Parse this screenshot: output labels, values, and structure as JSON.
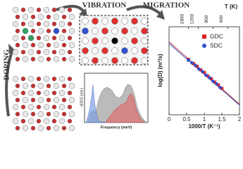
{
  "labels": {
    "doping": "DOPING",
    "vibration": "VIBRATION",
    "migration": "MIGRATION",
    "vdos_ylabel": "vDOS (arb.)",
    "vdos_xlabel": "Frequency (meV)"
  },
  "chart_data": {
    "type": "scatter",
    "ylabel": "log(D) (m²/s)",
    "xlabel": "1000/T (K⁻¹)",
    "x2label": "T (K)",
    "xlim": [
      0,
      2
    ],
    "xticks": [
      0,
      0.5,
      1,
      1.5,
      2
    ],
    "x2ticks": [
      {
        "value": 0.556,
        "label": "1800"
      },
      {
        "value": 0.833,
        "label": "1200"
      },
      {
        "value": 1.25,
        "label": "800"
      },
      {
        "value": 1.667,
        "label": "600"
      }
    ],
    "ylim": [
      0,
      1
    ],
    "legend": "upper-right",
    "series": [
      {
        "name": "GDC",
        "color": "#e02020",
        "marker": "square",
        "x": [
          0.55,
          0.7,
          0.8,
          0.9,
          1.0,
          1.1,
          1.2,
          1.3,
          1.4,
          1.5
        ],
        "values": [
          0.63,
          0.58,
          0.55,
          0.51,
          0.48,
          0.44,
          0.41,
          0.37,
          0.34,
          0.3
        ]
      },
      {
        "name": "SDC",
        "color": "#3050d0",
        "marker": "circle",
        "x": [
          0.55,
          0.65,
          0.75,
          0.85,
          0.95,
          1.05,
          1.15,
          1.25,
          1.35,
          1.45
        ],
        "values": [
          0.62,
          0.59,
          0.56,
          0.52,
          0.49,
          0.45,
          0.42,
          0.38,
          0.35,
          0.31
        ]
      }
    ],
    "fits": [
      {
        "color": "#c03030",
        "x": [
          0,
          2
        ],
        "values": [
          0.83,
          0.12
        ]
      },
      {
        "color": "#3040b0",
        "x": [
          0,
          2
        ],
        "values": [
          0.81,
          0.11
        ]
      }
    ]
  }
}
